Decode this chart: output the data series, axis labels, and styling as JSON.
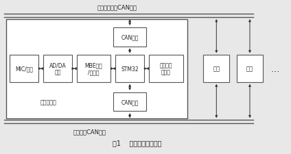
{
  "title": "图1    井下对讲系统框图",
  "top_label": "井下管理控制CAN总线",
  "bottom_label": "井下语音CAN总线",
  "node_label": "一语音节点",
  "bg_color": "#e8e8e8",
  "box_face": "#ffffff",
  "box_edge": "#555555",
  "bus_color": "#555555",
  "arrow_color": "#333333",
  "text_color": "#222222"
}
